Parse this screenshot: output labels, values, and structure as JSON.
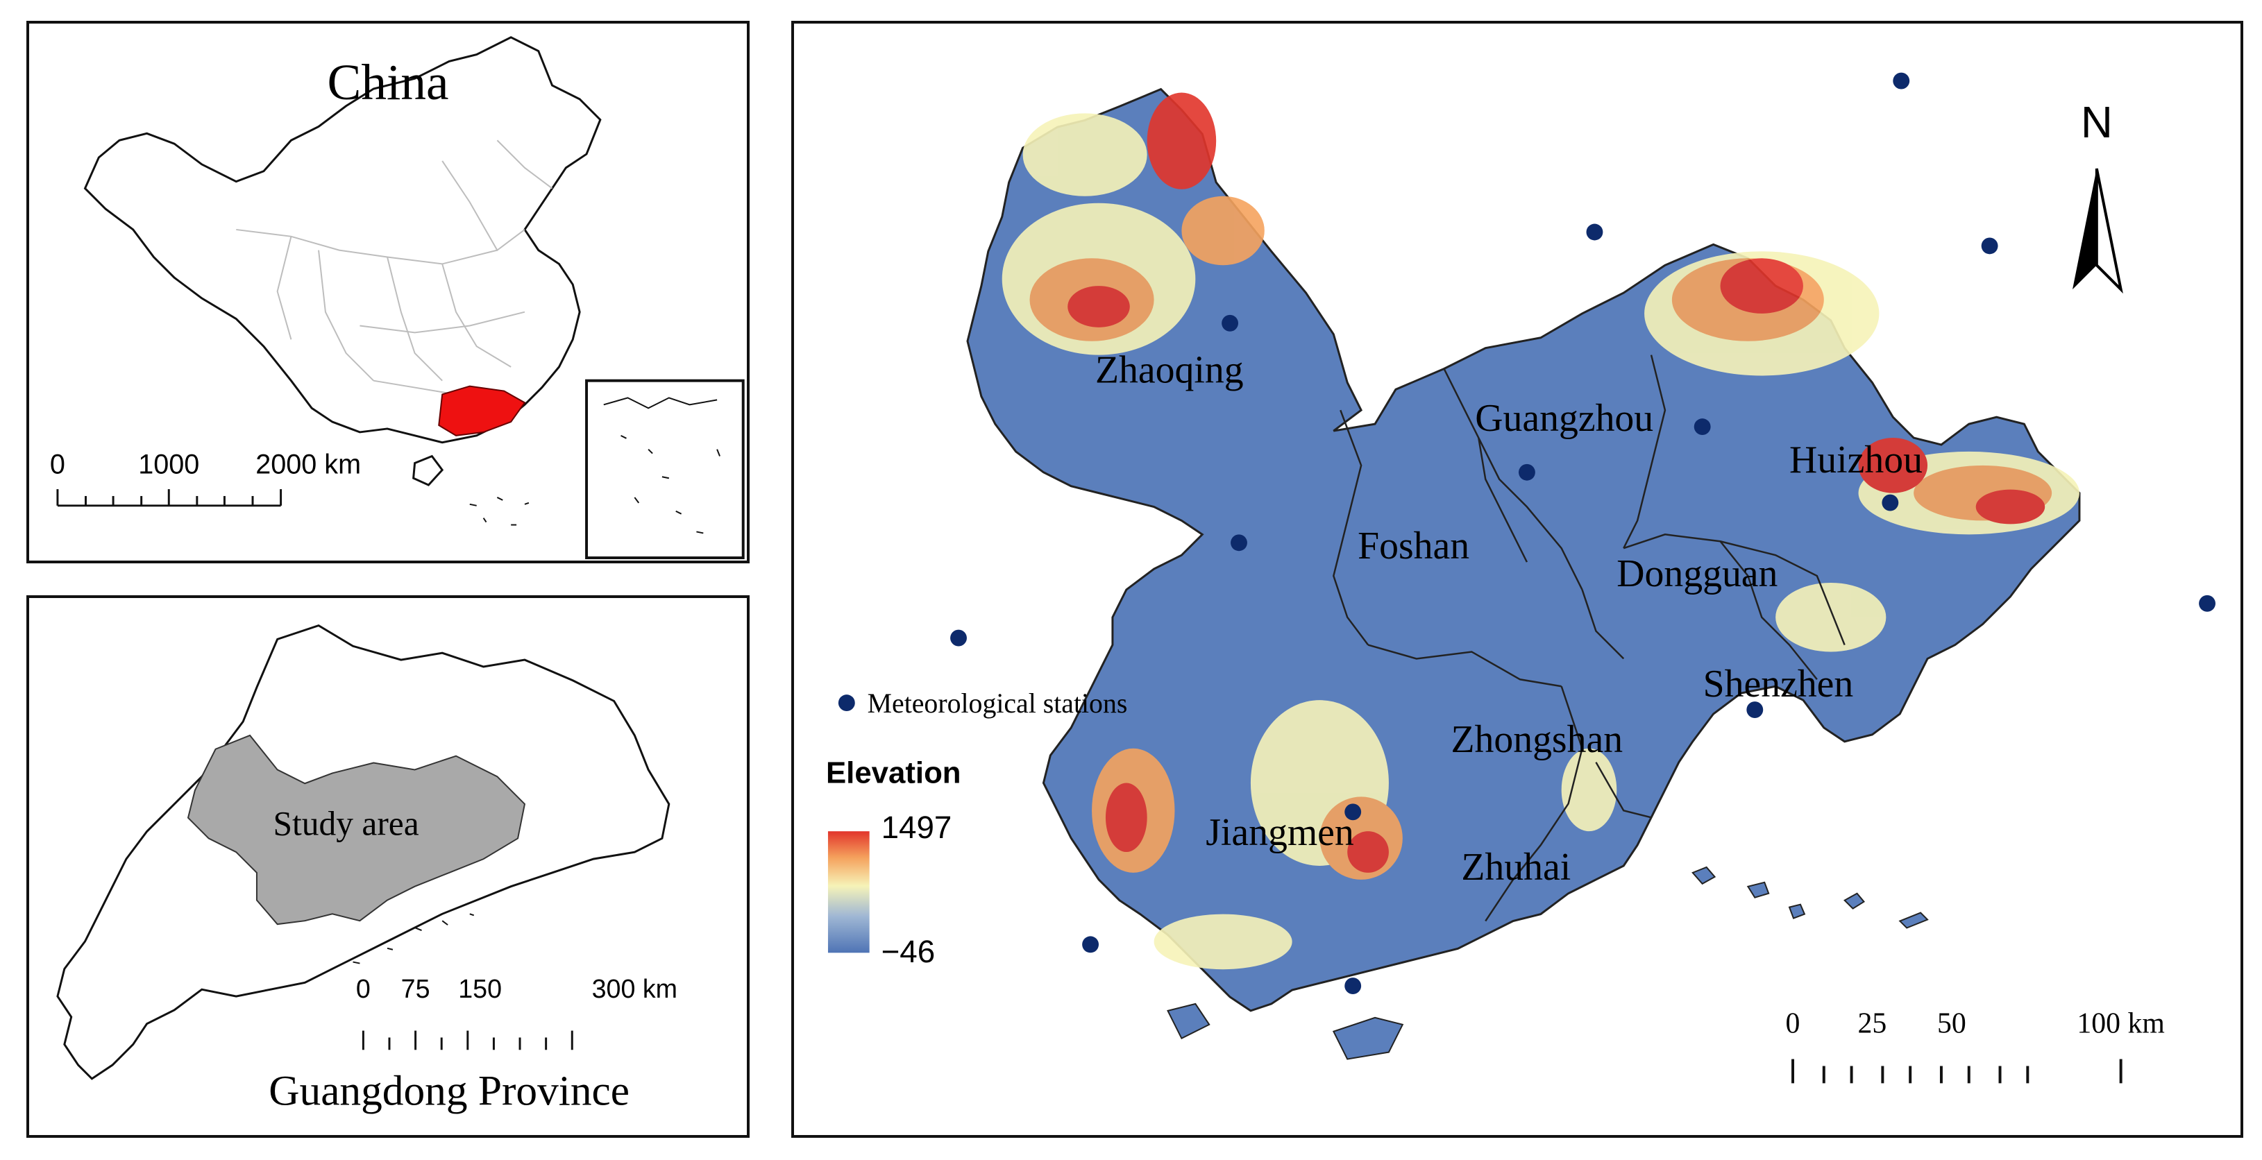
{
  "china_inset": {
    "title": "China",
    "scalebar": {
      "labels": [
        "0",
        "1000",
        "2000 km"
      ]
    },
    "highlight_color": "#ee1111"
  },
  "guangdong_inset": {
    "title": "Guangdong Province",
    "study_area_label": "Study area",
    "study_area_color": "#a9a9a9",
    "scalebar": {
      "labels": [
        "0",
        "75",
        "150",
        "300 km"
      ]
    }
  },
  "main_map": {
    "cities": [
      {
        "key": "zhaoqing",
        "name": "Zhaoqing"
      },
      {
        "key": "guangzhou",
        "name": "Guangzhou"
      },
      {
        "key": "huizhou",
        "name": "Huizhou"
      },
      {
        "key": "foshan",
        "name": "Foshan"
      },
      {
        "key": "dongguan",
        "name": "Dongguan"
      },
      {
        "key": "shenzhen",
        "name": "Shenzhen"
      },
      {
        "key": "zhongshan",
        "name": "Zhongshan"
      },
      {
        "key": "jiangmen",
        "name": "Jiangmen"
      },
      {
        "key": "zhuhai",
        "name": "Zhuhai"
      }
    ],
    "station_legend_label": "Meteorological stations",
    "station_color": "#0d2a6b",
    "elevation_legend": {
      "title": "Elevation",
      "max": "1497",
      "min": "−46",
      "colors": [
        "#4f74b5",
        "#9fb7d4",
        "#f6f3b8",
        "#f5a35e",
        "#e2352b"
      ]
    },
    "north_label": "N",
    "scalebar": {
      "labels": [
        "0",
        "25",
        "50",
        "100 km"
      ]
    }
  }
}
